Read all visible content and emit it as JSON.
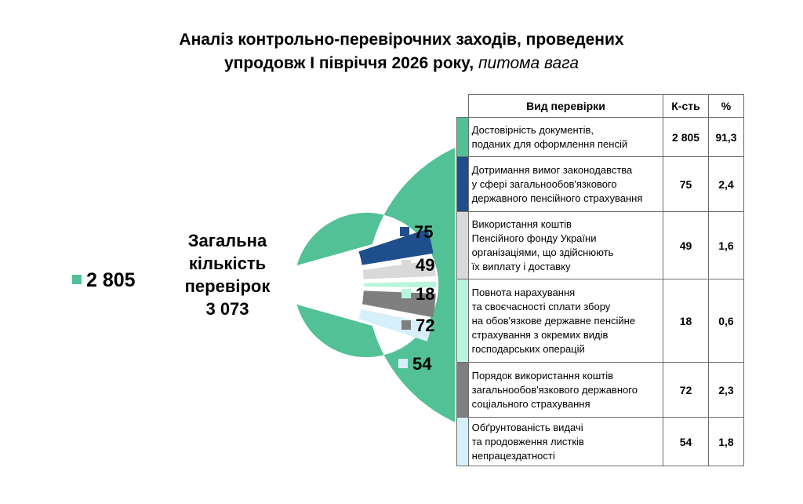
{
  "title": {
    "line1": "Аналіз контрольно-перевірочних заходів, проведених",
    "line2_bold": "упродовж І півріччя 2026 року,",
    "line2_italic": "питома вага"
  },
  "center": {
    "line1": "Загальна",
    "line2": "кількість",
    "line3": "перевірок",
    "total": "3 073"
  },
  "table": {
    "headers": [
      "Вид перевірки",
      "К-сть",
      "%"
    ],
    "rows": [
      {
        "color": "#52c196",
        "lines": [
          "Достовірність документів,",
          "поданих для оформлення пенсій"
        ],
        "count": "2 805",
        "pct": "91,3"
      },
      {
        "color": "#1f4e8c",
        "lines": [
          "Дотримання вимог законодавства",
          "у сфері загальнообов'язкового",
          "державного пенсійного страхування"
        ],
        "count": "75",
        "pct": "2,4"
      },
      {
        "color": "#d9d9d9",
        "lines": [
          "Використання коштів",
          "Пенсійного фонду України",
          "організаціями, що здійснюють",
          "їх виплату і доставку"
        ],
        "count": "49",
        "pct": "1,6"
      },
      {
        "color": "#b7f5dc",
        "lines": [
          "Повнота нарахування",
          "та своєчасності сплати збору",
          "на обов'язкове державне пенсійне",
          "страхування з окремих видів",
          "господарських операцій"
        ],
        "count": "18",
        "pct": "0,6"
      },
      {
        "color": "#7f7f7f",
        "lines": [
          "Порядок використання коштів",
          "загальнообов'язкового державного",
          "соціального страхування"
        ],
        "count": "72",
        "pct": "2,3"
      },
      {
        "color": "#d6f0fb",
        "lines": [
          "Обґрунтованість видачі",
          "та продовження листків",
          "непрацездатності"
        ],
        "count": "54",
        "pct": "1,8"
      }
    ]
  },
  "chart_data": {
    "type": "pie",
    "variant": "doughnut with exploded small slices",
    "total": 3073,
    "categories": [
      "Достовірність документів, поданих для оформлення пенсій",
      "Дотримання вимог законодавства у сфері загальнообов'язкового державного пенсійного страхування",
      "Використання коштів Пенсійного фонду України організаціями, що здійснюють їх виплату і доставку",
      "Повнота нарахування та своєчасності сплати збору на обов'язкове державне пенсійне страхування з окремих видів господарських операцій",
      "Порядок використання коштів загальнообов'язкового державного соціального страхування",
      "Обґрунтованість видачі та продовження листків непрацездатності"
    ],
    "values": [
      2805,
      75,
      49,
      18,
      72,
      54
    ],
    "data_labels": [
      "2 805",
      "75",
      "49",
      "18",
      "72",
      "54"
    ],
    "colors": [
      "#52c196",
      "#1f4e8c",
      "#d9d9d9",
      "#b7f5dc",
      "#7f7f7f",
      "#d6f0fb"
    ]
  }
}
